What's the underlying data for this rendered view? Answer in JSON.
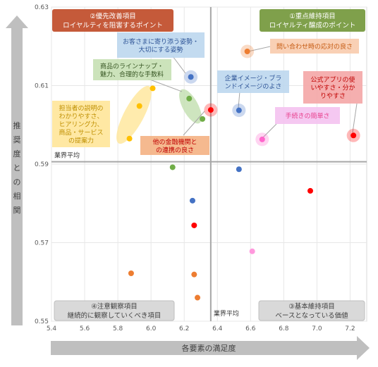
{
  "chart_data": {
    "type": "scatter",
    "xlabel": "各要素の満足度",
    "ylabel": "推奨度との相関",
    "xlim": [
      5.4,
      7.3
    ],
    "ylim": [
      0.55,
      0.63
    ],
    "x_ticks": [
      "5.4",
      "5.6",
      "5.8",
      "6.0",
      "6.2",
      "6.4",
      "6.6",
      "6.8",
      "7.0",
      "7.2"
    ],
    "y_ticks": [
      "0.55",
      "0.57",
      "0.59",
      "0.61",
      "0.63"
    ],
    "average": {
      "x": 6.36,
      "y": 0.5906,
      "x_label": "業界平均",
      "y_label": "業界平均"
    },
    "quadrants": [
      {
        "title": "②優先改善項目",
        "subtitle": "ロイヤルティを阻害するポイント",
        "fill": "#C55A3A"
      },
      {
        "title": "①重点維持項目",
        "subtitle": "ロイヤルティ醸成のポイント",
        "fill": "#7FA04B"
      },
      {
        "title": "④注意観察項目",
        "subtitle": "継続的に観察していくべき項目",
        "fill": "#D9D9D9"
      },
      {
        "title": "③基本維持項目",
        "subtitle": "ベースとなっている価値",
        "fill": "#D9D9D9"
      }
    ],
    "points": [
      {
        "x": 6.24,
        "y": 0.6122,
        "color": "#4472C4",
        "halo": true
      },
      {
        "x": 6.53,
        "y": 0.6037,
        "color": "#4472C4",
        "halo": true
      },
      {
        "x": 6.58,
        "y": 0.6187,
        "color": "#ED7D31",
        "halo": true
      },
      {
        "x": 6.23,
        "y": 0.6067,
        "color": "#70AD47",
        "halo": false
      },
      {
        "x": 6.31,
        "y": 0.6015,
        "color": "#70AD47",
        "halo": false
      },
      {
        "x": 6.36,
        "y": 0.6038,
        "color": "#FF0000",
        "halo": true
      },
      {
        "x": 7.22,
        "y": 0.5973,
        "color": "#FF0000",
        "halo": true
      },
      {
        "x": 6.67,
        "y": 0.5963,
        "color": "#FF66CC",
        "halo": true
      },
      {
        "x": 6.01,
        "y": 0.6093,
        "color": "#FFC000",
        "halo": false
      },
      {
        "x": 5.93,
        "y": 0.6048,
        "color": "#FFC000",
        "halo": false
      },
      {
        "x": 5.87,
        "y": 0.5965,
        "color": "#FFC000",
        "halo": false
      },
      {
        "x": 6.13,
        "y": 0.5892,
        "color": "#70AD47",
        "halo": false
      },
      {
        "x": 6.53,
        "y": 0.5887,
        "color": "#4472C4",
        "halo": false
      },
      {
        "x": 6.25,
        "y": 0.5807,
        "color": "#4472C4",
        "halo": false
      },
      {
        "x": 6.26,
        "y": 0.5744,
        "color": "#FF0000",
        "halo": false
      },
      {
        "x": 6.96,
        "y": 0.5832,
        "color": "#FF0000",
        "halo": false
      },
      {
        "x": 6.61,
        "y": 0.5678,
        "color": "#FF99DD",
        "halo": false
      },
      {
        "x": 5.88,
        "y": 0.5622,
        "color": "#ED7D31",
        "halo": false
      },
      {
        "x": 6.26,
        "y": 0.5619,
        "color": "#ED7D31",
        "halo": false
      },
      {
        "x": 6.28,
        "y": 0.556,
        "color": "#ED7D31",
        "halo": false
      }
    ],
    "annotations": [
      {
        "lines": [
          "お客さまに寄り添う姿勢・",
          "大切にする姿勢"
        ],
        "fill": "#BDD7EE",
        "text_color": "#2F5597"
      },
      {
        "lines": [
          "商品のラインナップ・",
          "魅力、合理的な手数料"
        ],
        "fill": "#C6E0B4",
        "text_color": "#375623"
      },
      {
        "lines": [
          "担当者の説明の",
          "わかりやすさ、",
          "ヒアリング力、",
          "商品・サービス",
          "の提案力"
        ],
        "fill": "#FFE699",
        "text_color": "#BF8F00"
      },
      {
        "lines": [
          "他の金融機関と",
          "の連携の良さ"
        ],
        "fill": "#F4B183",
        "text_color": "#C00000"
      },
      {
        "lines": [
          "問い合わせ時の応対の良さ"
        ],
        "fill": "#F8CBAD",
        "text_color": "#C55A11"
      },
      {
        "lines": [
          "企業イメージ・ブラ",
          "ンドイメージのよさ"
        ],
        "fill": "#BDD7EE",
        "text_color": "#2F5597"
      },
      {
        "lines": [
          "公式アプリの使",
          "いやすさ・分か",
          "りやすさ"
        ],
        "fill": "#F4A6A6",
        "text_color": "#C00000"
      },
      {
        "lines": [
          "手続きの簡単さ"
        ],
        "fill": "#F4C2F0",
        "text_color": "#E83E8C"
      }
    ]
  }
}
